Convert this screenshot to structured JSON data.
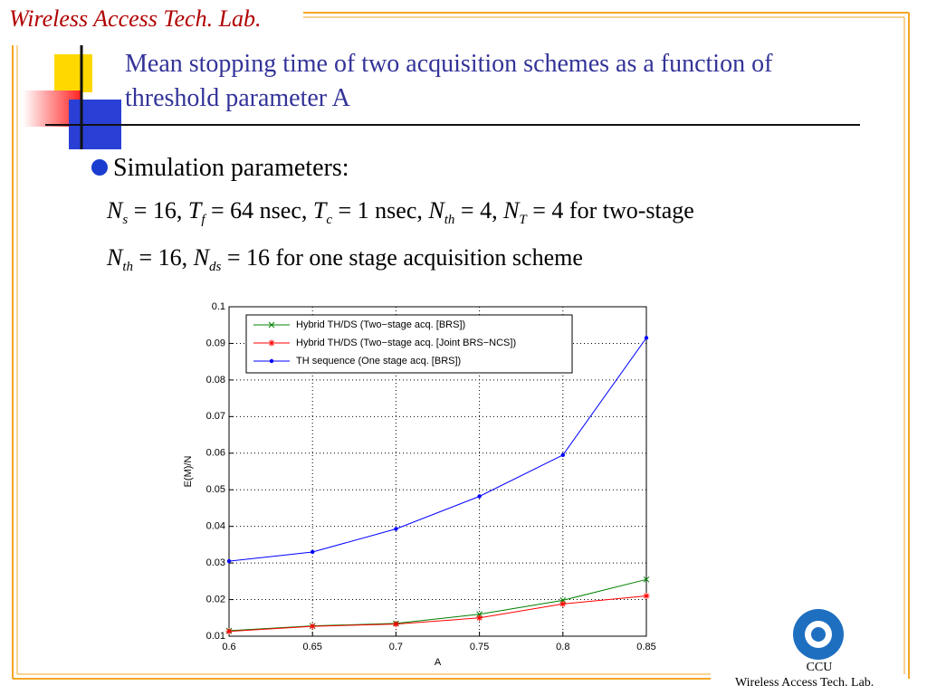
{
  "header": {
    "lab": "Wireless Access Tech. Lab.",
    "title": "Mean stopping time of two acquisition schemes as a function of threshold parameter A"
  },
  "bullet": "Simulation parameters:",
  "params": [
    [
      {
        "sym": "N",
        "sub": "s",
        "rest": " = 16, "
      },
      {
        "sym": "T",
        "sub": "f",
        "rest": " = 64 nsec, "
      },
      {
        "sym": "T",
        "sub": "c",
        "rest": " = 1 nsec, "
      },
      {
        "sym": "N",
        "sub": "th",
        "rest": " = 4, "
      },
      {
        "sym": "N",
        "sub": "T",
        "rest": " = 4 for two-stage"
      }
    ],
    [
      {
        "sym": "N",
        "sub": "th",
        "rest": " = 16, "
      },
      {
        "sym": "N",
        "sub": "ds",
        "rest": " = 16 for one stage acquisition scheme"
      }
    ]
  ],
  "footer": {
    "org": "CCU",
    "lab": "Wireless Access Tech. Lab."
  },
  "chart_data": {
    "type": "line",
    "xlabel": "A",
    "ylabel": "E(M)/N",
    "x": [
      0.6,
      0.65,
      0.7,
      0.75,
      0.8,
      0.85
    ],
    "series": [
      {
        "name": "Hybrid TH/DS (Two−stage acq. [BRS])",
        "color": "#008000",
        "marker": "x",
        "values": [
          0.0115,
          0.0128,
          0.0135,
          0.016,
          0.0198,
          0.0255
        ]
      },
      {
        "name": "Hybrid TH/DS (Two−stage acq. [Joint BRS−NCS])",
        "color": "#ff0000",
        "marker": "*",
        "values": [
          0.0113,
          0.0127,
          0.0133,
          0.015,
          0.0188,
          0.021
        ]
      },
      {
        "name": "TH sequence (One stage acq. [BRS])",
        "color": "#0000ff",
        "marker": "dot",
        "values": [
          0.0305,
          0.033,
          0.0393,
          0.0482,
          0.0595,
          0.0915
        ]
      }
    ],
    "xlim": [
      0.6,
      0.85
    ],
    "xticks": [
      0.6,
      0.65,
      0.7,
      0.75,
      0.8,
      0.85
    ],
    "ylim": [
      0.01,
      0.1
    ],
    "yticks": [
      0.01,
      0.02,
      0.03,
      0.04,
      0.05,
      0.06,
      0.07,
      0.08,
      0.09,
      0.1
    ],
    "grid": true,
    "legend": "upper left"
  }
}
